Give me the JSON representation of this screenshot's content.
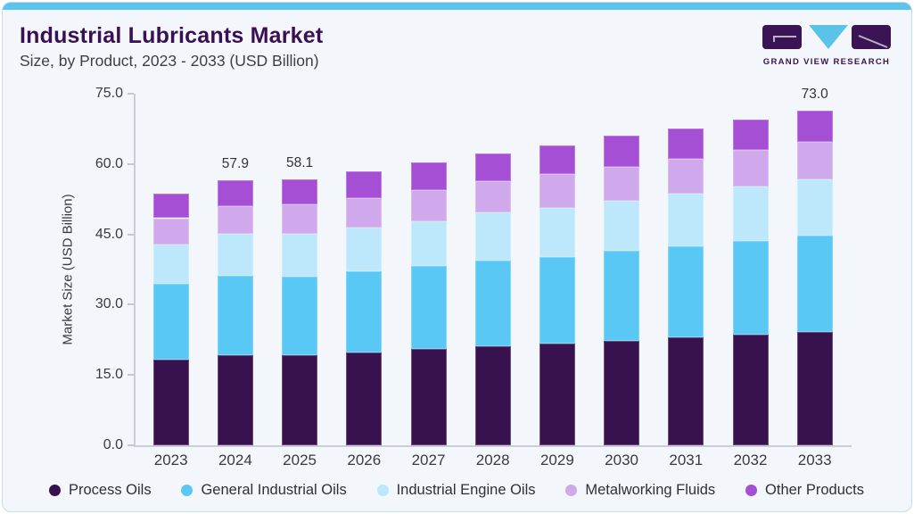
{
  "header": {
    "title": "Industrial Lubricants Market",
    "subtitle": "Size, by Product, 2023 - 2033 (USD Billion)"
  },
  "logo": {
    "text": "GRAND VIEW RESEARCH",
    "purple": "#3A1454",
    "cyan": "#5BC2E9"
  },
  "colors": {
    "card_background": "#F3F7FB",
    "card_border": "#C5DDEC",
    "top_accent": "#5CC3ED",
    "title_text": "#3A1054",
    "subtitle_text": "#3F4046",
    "axis_text": "#3A3A42",
    "axis_line": "#C9CED8"
  },
  "chart_data": {
    "type": "bar",
    "stacked": true,
    "title": "Industrial Lubricants Market Size, by Product, 2023 - 2033 (USD Billion)",
    "xlabel": "",
    "ylabel": "Market Size (USD Billion)",
    "ylim": [
      0,
      75
    ],
    "yticks": [
      0,
      15,
      30,
      45,
      60,
      75
    ],
    "ytick_labels": [
      "0.0",
      "15.0",
      "30.0",
      "45.0",
      "60.0",
      "75.0"
    ],
    "grid": false,
    "legend_position": "bottom",
    "categories": [
      "2023",
      "2024",
      "2025",
      "2026",
      "2027",
      "2028",
      "2029",
      "2030",
      "2031",
      "2032",
      "2033"
    ],
    "series": [
      {
        "name": "Process Oils",
        "color": "#37124E",
        "values": [
          18.7,
          19.7,
          19.7,
          20.3,
          21.0,
          21.6,
          22.2,
          22.8,
          23.6,
          24.1,
          24.7
        ]
      },
      {
        "name": "General Industrial Oils",
        "color": "#5AC8F5",
        "values": [
          16.5,
          17.4,
          17.2,
          17.7,
          18.1,
          18.7,
          19.0,
          19.7,
          19.8,
          20.5,
          21.1
        ]
      },
      {
        "name": "Industrial Engine Oils",
        "color": "#BDE7FA",
        "values": [
          8.7,
          9.1,
          9.3,
          9.5,
          9.9,
          10.5,
          10.7,
          10.9,
          11.6,
          12.0,
          12.2
        ]
      },
      {
        "name": "Metalworking Fluids",
        "color": "#D0A9EC",
        "values": [
          5.7,
          6.0,
          6.4,
          6.5,
          6.8,
          6.9,
          7.3,
          7.5,
          7.6,
          8.0,
          8.2
        ]
      },
      {
        "name": "Other Products",
        "color": "#A44FD4",
        "values": [
          5.3,
          5.7,
          5.5,
          5.9,
          6.0,
          6.0,
          6.2,
          6.7,
          6.6,
          6.6,
          6.8
        ]
      }
    ],
    "totals": [
      54.9,
      57.9,
      58.1,
      59.9,
      61.8,
      63.7,
      65.4,
      67.6,
      69.2,
      71.2,
      73.0
    ],
    "value_labels": [
      {
        "category_index": 1,
        "text": "57.9"
      },
      {
        "category_index": 2,
        "text": "58.1"
      },
      {
        "category_index": 10,
        "text": "73.0"
      }
    ]
  }
}
